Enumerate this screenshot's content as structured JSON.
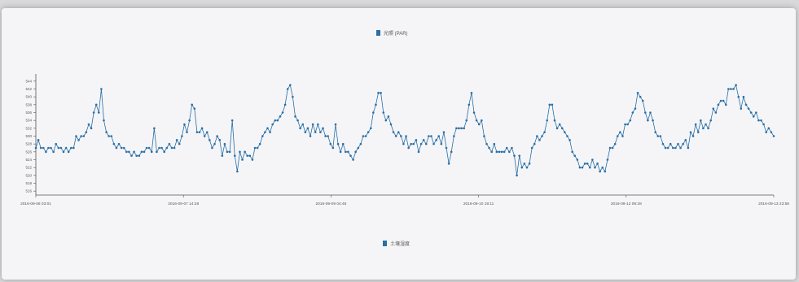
{
  "legend": {
    "top_label": "光照 (PAR)",
    "bottom_label": "土壤湿度",
    "color": "#2a6fa6"
  },
  "chart_data": {
    "type": "line",
    "title": "",
    "xlabel": "",
    "ylabel": "",
    "ylim": [
      515,
      545
    ],
    "yticks": [
      516,
      518,
      520,
      522,
      524,
      526,
      528,
      530,
      532,
      534,
      536,
      538,
      540,
      542,
      544
    ],
    "x_tick_labels": [
      "2016-09-06 03:01",
      "2016-09-07 14:28",
      "2016-09-09 04:46",
      "2016-09-10 19:11",
      "2016-09-12 09:28",
      "2016-09-13 23:58"
    ],
    "series": [
      {
        "name": "光照 (PAR)",
        "color": "#2a6fa6",
        "values": [
          527,
          529,
          527,
          527,
          526,
          527,
          527,
          526,
          528,
          527,
          527,
          526,
          527,
          526,
          527,
          527,
          530,
          529,
          530,
          530,
          531,
          533,
          532,
          536,
          538,
          536,
          542,
          534,
          531,
          530,
          530,
          528,
          527,
          528,
          527,
          527,
          526,
          526,
          525,
          526,
          525,
          525,
          526,
          526,
          527,
          527,
          526,
          532,
          526,
          527,
          527,
          526,
          527,
          528,
          527,
          527,
          529,
          528,
          530,
          533,
          531,
          534,
          538,
          537,
          531,
          531,
          532,
          530,
          531,
          529,
          527,
          528,
          530,
          529,
          525,
          528,
          526,
          526,
          534,
          525,
          521,
          526,
          524,
          526,
          525,
          525,
          524,
          527,
          527,
          528,
          530,
          531,
          532,
          531,
          533,
          534,
          534,
          535,
          536,
          538,
          542,
          543,
          540,
          535,
          534,
          532,
          533,
          531,
          532,
          530,
          533,
          531,
          533,
          531,
          532,
          530,
          530,
          528,
          527,
          533,
          528,
          526,
          528,
          526,
          526,
          525,
          524,
          526,
          527,
          528,
          530,
          530,
          531,
          532,
          536,
          538,
          541,
          541,
          536,
          534,
          535,
          533,
          531,
          530,
          531,
          530,
          528,
          530,
          527,
          528,
          528,
          529,
          526,
          528,
          529,
          528,
          530,
          530,
          528,
          529,
          530,
          528,
          531,
          527,
          523,
          526,
          530,
          532,
          532,
          532,
          532,
          534,
          538,
          541,
          536,
          534,
          533,
          534,
          530,
          528,
          527,
          526,
          528,
          526,
          526,
          526,
          526,
          527,
          526,
          527,
          525,
          520,
          525,
          522,
          523,
          522,
          523,
          527,
          528,
          530,
          529,
          530,
          531,
          534,
          538,
          538,
          534,
          532,
          533,
          532,
          531,
          530,
          529,
          526,
          525,
          524,
          522,
          522,
          523,
          523,
          522,
          524,
          522,
          523,
          521,
          522,
          521,
          524,
          527,
          527,
          528,
          530,
          531,
          530,
          533,
          533,
          534,
          536,
          537,
          541,
          540,
          539,
          536,
          534,
          536,
          534,
          531,
          530,
          530,
          528,
          527,
          527,
          528,
          527,
          527,
          528,
          527,
          528,
          529,
          527,
          531,
          530,
          533,
          531,
          534,
          532,
          533,
          532,
          534,
          537,
          536,
          538,
          539,
          539,
          538,
          542,
          542,
          542,
          543,
          540,
          537,
          540,
          538,
          537,
          536,
          535,
          536,
          534,
          534,
          533,
          531,
          532,
          531,
          530
        ]
      }
    ]
  }
}
